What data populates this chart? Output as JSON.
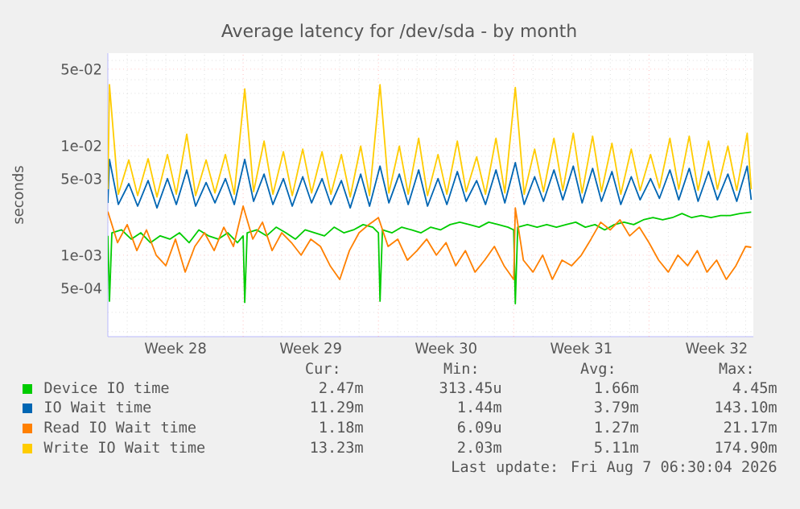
{
  "chart_data": {
    "type": "line",
    "title": "Average latency for /dev/sda - by month",
    "ylabel": "seconds",
    "log": "y",
    "grid": true,
    "legend": "bottom",
    "xlim": [
      "2026-07-06T00:00",
      "2026-08-08T09:36"
    ],
    "ylim": [
      0.00018,
      0.07
    ],
    "xticks": [
      {
        "value": "2026-07-09T12:00",
        "label": "Week 28"
      },
      {
        "value": "2026-07-16T12:00",
        "label": "Week 29"
      },
      {
        "value": "2026-07-23T12:00",
        "label": "Week 30"
      },
      {
        "value": "2026-07-30T12:00",
        "label": "Week 31"
      },
      {
        "value": "2026-08-06T12:00",
        "label": "Week 32"
      },
      {
        "value": "2026-07-07",
        "label": null
      },
      {
        "value": "2026-07-08",
        "label": null
      },
      {
        "value": "2026-07-09",
        "label": null
      },
      {
        "value": "2026-07-10",
        "label": null
      },
      {
        "value": "2026-07-11",
        "label": null
      },
      {
        "value": "2026-07-12",
        "label": null
      },
      {
        "value": "2026-07-14",
        "label": null
      },
      {
        "value": "2026-07-15",
        "label": null
      },
      {
        "value": "2026-07-16",
        "label": null
      },
      {
        "value": "2026-07-17",
        "label": null
      },
      {
        "value": "2026-07-18",
        "label": null
      },
      {
        "value": "2026-07-19",
        "label": null
      },
      {
        "value": "2026-07-21",
        "label": null
      },
      {
        "value": "2026-07-22",
        "label": null
      },
      {
        "value": "2026-07-23",
        "label": null
      },
      {
        "value": "2026-07-24",
        "label": null
      },
      {
        "value": "2026-07-25",
        "label": null
      },
      {
        "value": "2026-07-26",
        "label": null
      },
      {
        "value": "2026-07-28",
        "label": null
      },
      {
        "value": "2026-07-29",
        "label": null
      },
      {
        "value": "2026-07-30",
        "label": null
      },
      {
        "value": "2026-07-31",
        "label": null
      },
      {
        "value": "2026-08-01",
        "label": null
      },
      {
        "value": "2026-08-02",
        "label": null
      },
      {
        "value": "2026-08-04",
        "label": null
      },
      {
        "value": "2026-08-05",
        "label": null
      },
      {
        "value": "2026-08-06",
        "label": null
      },
      {
        "value": "2026-08-07",
        "label": null
      },
      {
        "value": "2026-08-08",
        "label": null
      }
    ],
    "yticks": [
      {
        "value": 0.0005,
        "label": "5e-04"
      },
      {
        "value": 0.001,
        "label": "1e-03"
      },
      {
        "value": 0.005,
        "label": "5e-03"
      },
      {
        "value": 0.01,
        "label": "1e-02"
      },
      {
        "value": 0.05,
        "label": "5e-02"
      },
      {
        "value": 0.0002,
        "label": null
      },
      {
        "value": 0.0003,
        "label": null
      },
      {
        "value": 0.0004,
        "label": null
      },
      {
        "value": 0.0006,
        "label": null
      },
      {
        "value": 0.0007,
        "label": null
      },
      {
        "value": 0.0008,
        "label": null
      },
      {
        "value": 0.0009,
        "label": null
      },
      {
        "value": 0.002,
        "label": null
      },
      {
        "value": 0.003,
        "label": null
      },
      {
        "value": 0.004,
        "label": null
      },
      {
        "value": 0.006,
        "label": null
      },
      {
        "value": 0.007,
        "label": null
      },
      {
        "value": 0.008,
        "label": null
      },
      {
        "value": 0.009,
        "label": null
      },
      {
        "value": 0.02,
        "label": null
      },
      {
        "value": 0.03,
        "label": null
      },
      {
        "value": 0.04,
        "label": null
      },
      {
        "value": 0.06,
        "label": null
      }
    ],
    "ref_lines": [
      {
        "axis": "x",
        "value": "2026-07-13",
        "color": "#ff9999",
        "line_style": "dotted"
      },
      {
        "axis": "x",
        "value": "2026-07-20",
        "color": "#ff9999",
        "line_style": "dotted"
      },
      {
        "axis": "x",
        "value": "2026-07-27",
        "color": "#ff9999",
        "line_style": "dotted"
      },
      {
        "axis": "x",
        "value": "2026-08-03",
        "color": "#ff9999",
        "line_style": "dotted"
      }
    ],
    "series": [
      {
        "name": "Device IO time",
        "color": "#00cc00",
        "x": [
          "2026-07-06T00:00",
          "2026-07-06T02:00",
          "2026-07-06T05:00",
          "2026-07-06T17:00",
          "2026-07-07T05:00",
          "2026-07-07T17:00",
          "2026-07-08T05:00",
          "2026-07-08T17:00",
          "2026-07-09T05:00",
          "2026-07-09T17:00",
          "2026-07-10T05:00",
          "2026-07-10T17:00",
          "2026-07-11T05:00",
          "2026-07-11T17:00",
          "2026-07-12T05:00",
          "2026-07-12T17:00",
          "2026-07-13T00:00",
          "2026-07-13T02:00",
          "2026-07-13T05:00",
          "2026-07-13T17:00",
          "2026-07-14T05:00",
          "2026-07-14T17:00",
          "2026-07-15T05:00",
          "2026-07-15T17:00",
          "2026-07-16T05:00",
          "2026-07-16T17:00",
          "2026-07-17T05:00",
          "2026-07-17T17:00",
          "2026-07-18T05:00",
          "2026-07-18T17:00",
          "2026-07-19T05:00",
          "2026-07-19T17:00",
          "2026-07-20T00:00",
          "2026-07-20T02:00",
          "2026-07-20T05:00",
          "2026-07-20T17:00",
          "2026-07-21T05:00",
          "2026-07-21T17:00",
          "2026-07-22T05:00",
          "2026-07-22T17:00",
          "2026-07-23T05:00",
          "2026-07-23T17:00",
          "2026-07-24T05:00",
          "2026-07-24T17:00",
          "2026-07-25T05:00",
          "2026-07-25T17:00",
          "2026-07-26T05:00",
          "2026-07-26T17:00",
          "2026-07-27T00:00",
          "2026-07-27T02:00",
          "2026-07-27T05:00",
          "2026-07-27T17:00",
          "2026-07-28T05:00",
          "2026-07-28T17:00",
          "2026-07-29T05:00",
          "2026-07-29T17:00",
          "2026-07-30T05:00",
          "2026-07-30T17:00",
          "2026-07-31T05:00",
          "2026-07-31T17:00",
          "2026-08-01T05:00",
          "2026-08-01T17:00",
          "2026-08-02T05:00",
          "2026-08-02T17:00",
          "2026-08-03T05:00",
          "2026-08-03T17:00",
          "2026-08-04T05:00",
          "2026-08-04T17:00",
          "2026-08-05T05:00",
          "2026-08-05T17:00",
          "2026-08-06T05:00",
          "2026-08-06T17:00",
          "2026-08-07T05:00",
          "2026-08-07T17:00",
          "2026-08-08T07:00"
        ],
        "values": [
          0.0015,
          0.00038,
          0.0016,
          0.0017,
          0.0014,
          0.0016,
          0.0013,
          0.0015,
          0.0014,
          0.0016,
          0.0013,
          0.0017,
          0.0015,
          0.0014,
          0.0016,
          0.0013,
          0.0015,
          0.00037,
          0.0016,
          0.0017,
          0.0015,
          0.0018,
          0.0016,
          0.0014,
          0.0017,
          0.0016,
          0.0015,
          0.0018,
          0.0016,
          0.0017,
          0.0019,
          0.0018,
          0.0016,
          0.00038,
          0.0017,
          0.0016,
          0.0018,
          0.0017,
          0.0016,
          0.0018,
          0.0017,
          0.0019,
          0.002,
          0.0019,
          0.0018,
          0.002,
          0.0019,
          0.0018,
          0.0017,
          0.00036,
          0.0018,
          0.0019,
          0.0018,
          0.0019,
          0.0018,
          0.0019,
          0.002,
          0.0018,
          0.0019,
          0.0017,
          0.0019,
          0.002,
          0.0019,
          0.0021,
          0.0022,
          0.0021,
          0.0022,
          0.0024,
          0.0022,
          0.0023,
          0.0022,
          0.0023,
          0.0023,
          0.0024,
          0.00247
        ]
      },
      {
        "name": "IO Wait time",
        "color": "#0066b3",
        "x": [
          "2026-07-06T00:00",
          "2026-07-06T02:00",
          "2026-07-06T13:00",
          "2026-07-07T02:00",
          "2026-07-07T13:00",
          "2026-07-08T02:00",
          "2026-07-08T13:00",
          "2026-07-09T02:00",
          "2026-07-09T13:00",
          "2026-07-10T02:00",
          "2026-07-10T13:00",
          "2026-07-11T02:00",
          "2026-07-11T13:00",
          "2026-07-12T02:00",
          "2026-07-12T13:00",
          "2026-07-13T02:00",
          "2026-07-13T13:00",
          "2026-07-14T02:00",
          "2026-07-14T13:00",
          "2026-07-15T02:00",
          "2026-07-15T13:00",
          "2026-07-16T02:00",
          "2026-07-16T13:00",
          "2026-07-17T02:00",
          "2026-07-17T13:00",
          "2026-07-18T02:00",
          "2026-07-18T13:00",
          "2026-07-19T02:00",
          "2026-07-19T13:00",
          "2026-07-20T02:00",
          "2026-07-20T13:00",
          "2026-07-21T02:00",
          "2026-07-21T13:00",
          "2026-07-22T02:00",
          "2026-07-22T13:00",
          "2026-07-23T02:00",
          "2026-07-23T13:00",
          "2026-07-24T02:00",
          "2026-07-24T13:00",
          "2026-07-25T02:00",
          "2026-07-25T13:00",
          "2026-07-26T02:00",
          "2026-07-26T13:00",
          "2026-07-27T02:00",
          "2026-07-27T13:00",
          "2026-07-28T02:00",
          "2026-07-28T13:00",
          "2026-07-29T02:00",
          "2026-07-29T13:00",
          "2026-07-30T02:00",
          "2026-07-30T13:00",
          "2026-07-31T02:00",
          "2026-07-31T13:00",
          "2026-08-01T02:00",
          "2026-08-01T13:00",
          "2026-08-02T02:00",
          "2026-08-02T13:00",
          "2026-08-03T02:00",
          "2026-08-03T13:00",
          "2026-08-04T02:00",
          "2026-08-04T13:00",
          "2026-08-05T02:00",
          "2026-08-05T13:00",
          "2026-08-06T02:00",
          "2026-08-06T13:00",
          "2026-08-07T02:00",
          "2026-08-07T13:00",
          "2026-08-08T02:00",
          "2026-08-08T07:00"
        ],
        "values": [
          0.003,
          0.0075,
          0.0029,
          0.0045,
          0.0028,
          0.0048,
          0.0027,
          0.005,
          0.0029,
          0.006,
          0.0028,
          0.0046,
          0.003,
          0.005,
          0.0029,
          0.0075,
          0.0031,
          0.0055,
          0.0029,
          0.005,
          0.0028,
          0.0052,
          0.003,
          0.005,
          0.0029,
          0.0048,
          0.0027,
          0.0055,
          0.0028,
          0.0065,
          0.003,
          0.0055,
          0.0029,
          0.006,
          0.0028,
          0.005,
          0.0029,
          0.0058,
          0.0031,
          0.0048,
          0.0029,
          0.006,
          0.003,
          0.007,
          0.0029,
          0.0052,
          0.0031,
          0.006,
          0.0032,
          0.0065,
          0.003,
          0.0062,
          0.0031,
          0.0058,
          0.0029,
          0.0052,
          0.0032,
          0.005,
          0.0033,
          0.006,
          0.0032,
          0.0062,
          0.0031,
          0.0058,
          0.0032,
          0.0055,
          0.0031,
          0.0065,
          0.0032
        ]
      },
      {
        "name": "Read IO Wait time",
        "color": "#ff8000",
        "x": [
          "2026-07-06T00:00",
          "2026-07-06T12:00",
          "2026-07-07T00:00",
          "2026-07-07T12:00",
          "2026-07-08T00:00",
          "2026-07-08T12:00",
          "2026-07-09T00:00",
          "2026-07-09T12:00",
          "2026-07-10T00:00",
          "2026-07-10T12:00",
          "2026-07-11T00:00",
          "2026-07-11T12:00",
          "2026-07-12T00:00",
          "2026-07-12T12:00",
          "2026-07-13T00:00",
          "2026-07-13T12:00",
          "2026-07-14T00:00",
          "2026-07-14T12:00",
          "2026-07-15T00:00",
          "2026-07-15T12:00",
          "2026-07-16T00:00",
          "2026-07-16T12:00",
          "2026-07-17T00:00",
          "2026-07-17T12:00",
          "2026-07-18T00:00",
          "2026-07-18T12:00",
          "2026-07-19T00:00",
          "2026-07-19T12:00",
          "2026-07-20T00:00",
          "2026-07-20T12:00",
          "2026-07-21T00:00",
          "2026-07-21T12:00",
          "2026-07-22T00:00",
          "2026-07-22T12:00",
          "2026-07-23T00:00",
          "2026-07-23T12:00",
          "2026-07-24T00:00",
          "2026-07-24T12:00",
          "2026-07-25T00:00",
          "2026-07-25T12:00",
          "2026-07-26T00:00",
          "2026-07-26T12:00",
          "2026-07-27T00:00",
          "2026-07-27T02:00",
          "2026-07-27T12:00",
          "2026-07-28T00:00",
          "2026-07-28T12:00",
          "2026-07-29T00:00",
          "2026-07-29T12:00",
          "2026-07-30T00:00",
          "2026-07-30T12:00",
          "2026-07-31T00:00",
          "2026-07-31T12:00",
          "2026-08-01T00:00",
          "2026-08-01T12:00",
          "2026-08-02T00:00",
          "2026-08-02T12:00",
          "2026-08-03T00:00",
          "2026-08-03T12:00",
          "2026-08-04T00:00",
          "2026-08-04T12:00",
          "2026-08-05T00:00",
          "2026-08-05T12:00",
          "2026-08-06T00:00",
          "2026-08-06T12:00",
          "2026-08-07T00:00",
          "2026-08-07T12:00",
          "2026-08-08T00:00",
          "2026-08-08T07:00"
        ],
        "values": [
          0.0025,
          0.0013,
          0.0019,
          0.0011,
          0.0017,
          0.001,
          0.0008,
          0.0014,
          0.0007,
          0.0012,
          0.0016,
          0.0011,
          0.0018,
          0.0012,
          0.0028,
          0.0014,
          0.002,
          0.0011,
          0.0016,
          0.0013,
          0.001,
          0.0014,
          0.0012,
          0.0008,
          0.0006,
          0.0011,
          0.0016,
          0.0019,
          0.0022,
          0.0012,
          0.0014,
          0.0009,
          0.0011,
          0.0014,
          0.001,
          0.0013,
          0.0008,
          0.0011,
          0.0007,
          0.0009,
          0.0012,
          0.0008,
          0.0006,
          0.0027,
          0.0009,
          0.0007,
          0.001,
          0.0006,
          0.0009,
          0.0008,
          0.001,
          0.0014,
          0.002,
          0.0017,
          0.0021,
          0.0015,
          0.0018,
          0.0013,
          0.0009,
          0.0007,
          0.001,
          0.0008,
          0.0011,
          0.0007,
          0.0009,
          0.0006,
          0.0008,
          0.0012,
          0.00118
        ]
      },
      {
        "name": "Write IO Wait time",
        "color": "#ffcc00",
        "x": [
          "2026-07-06T00:00",
          "2026-07-06T02:00",
          "2026-07-06T13:00",
          "2026-07-07T02:00",
          "2026-07-07T13:00",
          "2026-07-08T02:00",
          "2026-07-08T13:00",
          "2026-07-09T02:00",
          "2026-07-09T13:00",
          "2026-07-10T02:00",
          "2026-07-10T13:00",
          "2026-07-11T02:00",
          "2026-07-11T13:00",
          "2026-07-12T02:00",
          "2026-07-12T13:00",
          "2026-07-13T02:00",
          "2026-07-13T13:00",
          "2026-07-14T02:00",
          "2026-07-14T13:00",
          "2026-07-15T02:00",
          "2026-07-15T13:00",
          "2026-07-16T02:00",
          "2026-07-16T13:00",
          "2026-07-17T02:00",
          "2026-07-17T13:00",
          "2026-07-18T02:00",
          "2026-07-18T13:00",
          "2026-07-19T02:00",
          "2026-07-19T13:00",
          "2026-07-20T02:00",
          "2026-07-20T13:00",
          "2026-07-21T02:00",
          "2026-07-21T13:00",
          "2026-07-22T02:00",
          "2026-07-22T13:00",
          "2026-07-23T02:00",
          "2026-07-23T13:00",
          "2026-07-24T02:00",
          "2026-07-24T13:00",
          "2026-07-25T02:00",
          "2026-07-25T13:00",
          "2026-07-26T02:00",
          "2026-07-26T13:00",
          "2026-07-27T02:00",
          "2026-07-27T13:00",
          "2026-07-28T02:00",
          "2026-07-28T13:00",
          "2026-07-29T02:00",
          "2026-07-29T13:00",
          "2026-07-30T02:00",
          "2026-07-30T13:00",
          "2026-07-31T02:00",
          "2026-07-31T13:00",
          "2026-08-01T02:00",
          "2026-08-01T13:00",
          "2026-08-02T02:00",
          "2026-08-02T13:00",
          "2026-08-03T02:00",
          "2026-08-03T13:00",
          "2026-08-04T02:00",
          "2026-08-04T13:00",
          "2026-08-05T02:00",
          "2026-08-05T13:00",
          "2026-08-06T02:00",
          "2026-08-06T13:00",
          "2026-08-07T02:00",
          "2026-08-07T13:00",
          "2026-08-08T02:00",
          "2026-08-08T07:00"
        ],
        "values": [
          0.004,
          0.036,
          0.0036,
          0.0074,
          0.0035,
          0.0076,
          0.0034,
          0.0083,
          0.0036,
          0.0127,
          0.0035,
          0.0074,
          0.0037,
          0.0083,
          0.0036,
          0.033,
          0.0038,
          0.011,
          0.0036,
          0.0088,
          0.0035,
          0.0093,
          0.0037,
          0.0088,
          0.0036,
          0.0083,
          0.0034,
          0.0099,
          0.0035,
          0.036,
          0.0037,
          0.0099,
          0.0036,
          0.0117,
          0.0035,
          0.0083,
          0.0036,
          0.011,
          0.0038,
          0.0079,
          0.0036,
          0.0117,
          0.0037,
          0.034,
          0.0036,
          0.0093,
          0.0038,
          0.0117,
          0.0039,
          0.013,
          0.0037,
          0.0122,
          0.0038,
          0.0105,
          0.0036,
          0.0093,
          0.0039,
          0.0083,
          0.0041,
          0.0117,
          0.004,
          0.0122,
          0.0039,
          0.011,
          0.004,
          0.0099,
          0.0039,
          0.013,
          0.004
        ]
      }
    ],
    "annotations": [
      "Cur:",
      "Min:",
      "Avg:",
      "Max:",
      "2.47m",
      "313.45u",
      "1.66m",
      "4.45m",
      "11.29m",
      "1.44m",
      "3.79m",
      "143.10m",
      "1.18m",
      "6.09u",
      "1.27m",
      "21.17m",
      "13.23m",
      "2.03m",
      "5.11m",
      "174.90m",
      "Last update: Fri Aug  7 06:30:04 2026"
    ]
  }
}
